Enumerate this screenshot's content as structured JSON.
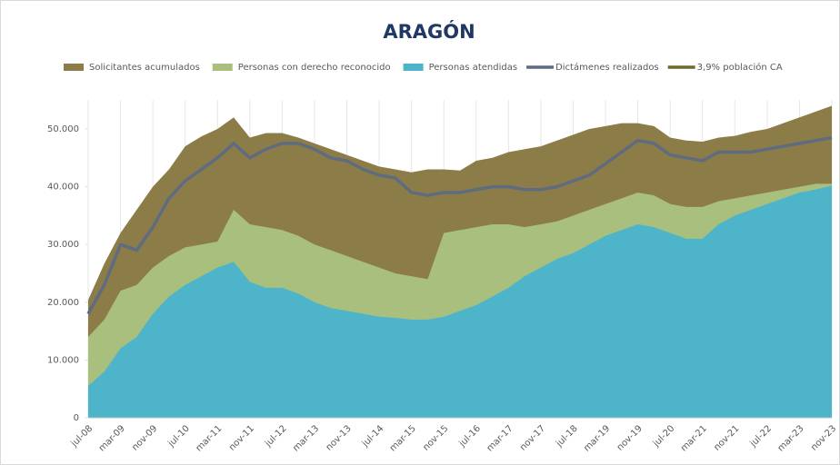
{
  "chart_data": {
    "type": "area",
    "title": "ARAGÓN",
    "categories": [
      "jul-08",
      null,
      "mar-09",
      null,
      "nov-09",
      null,
      "jul-10",
      null,
      "mar-11",
      null,
      "nov-11",
      null,
      "jul-12",
      null,
      "mar-13",
      null,
      "nov-13",
      null,
      "jul-14",
      null,
      "mar-15",
      null,
      "nov-15",
      null,
      "jul-16",
      null,
      "mar-17",
      null,
      "nov-17",
      null,
      "jul-18",
      null,
      "mar-19",
      null,
      "nov-19",
      null,
      "jul-20",
      null,
      "mar-21",
      null,
      "nov-21",
      null,
      "jul-22",
      null,
      "mar-23",
      null,
      "nov-23"
    ],
    "series": [
      {
        "name": "Solicitantes acumulados",
        "style": "area",
        "color": "#8c7c47",
        "values": [
          20400,
          26700,
          32000,
          36000,
          40000,
          43000,
          47000,
          48700,
          50000,
          52000,
          48500,
          49300,
          49300,
          48500,
          47500,
          46500,
          45500,
          44500,
          43500,
          43000,
          42500,
          43000,
          43000,
          42800,
          44500,
          45000,
          46000,
          46500,
          47000,
          48000,
          49000,
          50000,
          50500,
          51000,
          51000,
          50500,
          48500,
          48000,
          47800,
          48500,
          48800,
          49500,
          50000,
          51000,
          52000,
          53000,
          54000
        ]
      },
      {
        "name": "Personas con derecho reconocido",
        "style": "area",
        "color": "#a8bf7e",
        "values": [
          14000,
          17000,
          22000,
          23000,
          26000,
          28000,
          29500,
          30000,
          30500,
          36000,
          33500,
          33000,
          32500,
          31500,
          30000,
          29000,
          28000,
          27000,
          26000,
          25000,
          24500,
          24000,
          32000,
          32500,
          33000,
          33500,
          33500,
          33000,
          33500,
          34000,
          35000,
          36000,
          37000,
          38000,
          39000,
          38500,
          37000,
          36500,
          36500,
          37500,
          38000,
          38500,
          39000,
          39500,
          40000,
          40500,
          40500
        ]
      },
      {
        "name": "Personas atendidas",
        "style": "area",
        "color": "#4db4ca",
        "values": [
          5500,
          8000,
          12000,
          14000,
          18000,
          21000,
          23000,
          24500,
          26000,
          27000,
          23500,
          22500,
          22500,
          21500,
          20000,
          19000,
          18500,
          18000,
          17500,
          17300,
          17000,
          17000,
          17500,
          18500,
          19500,
          21000,
          22500,
          24500,
          26000,
          27500,
          28500,
          30000,
          31500,
          32500,
          33500,
          33000,
          32000,
          31000,
          31000,
          33500,
          35000,
          36000,
          37000,
          38000,
          39000,
          39500,
          40200
        ]
      },
      {
        "name": "Dictámenes realizados",
        "style": "line",
        "color": "#5f6b80",
        "values": [
          18000,
          23000,
          30000,
          29000,
          33000,
          38000,
          41000,
          43000,
          45000,
          47500,
          45000,
          46500,
          47500,
          47500,
          46500,
          45000,
          44500,
          43000,
          42000,
          41500,
          39000,
          38500,
          39000,
          39000,
          39500,
          40000,
          40000,
          39500,
          39500,
          40000,
          41000,
          42000,
          44000,
          46000,
          48000,
          47500,
          45500,
          45000,
          44500,
          46000,
          46000,
          46000,
          46500,
          47000,
          47500,
          48000,
          48500
        ]
      },
      {
        "name": "3,9% población CA",
        "style": "line",
        "color": "#6d6a2c",
        "values": [
          null,
          null,
          null,
          null,
          null,
          null,
          null,
          null,
          null,
          null,
          null,
          null,
          null,
          null,
          null,
          null,
          null,
          null,
          null,
          null,
          null,
          null,
          null,
          null,
          null,
          null,
          null,
          null,
          null,
          null,
          null,
          null,
          null,
          null,
          null,
          null,
          null,
          null,
          null,
          null,
          null,
          null,
          null,
          null,
          null,
          null,
          null
        ]
      }
    ],
    "ylim": [
      0,
      55000
    ],
    "yticks": [
      0,
      {
        "value": 10000,
        "label": "10.000"
      },
      {
        "value": 20000,
        "label": "20.000"
      },
      {
        "value": 30000,
        "label": "30.000"
      },
      {
        "value": 40000,
        "label": "40.000"
      },
      {
        "value": 50000,
        "label": "50.000"
      }
    ],
    "xgrid": true,
    "legend": "top"
  }
}
